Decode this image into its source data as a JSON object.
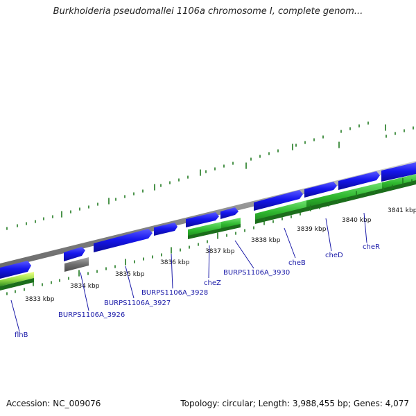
{
  "title": "Burkholderia pseudomallei 1106a chromosome I, complete genom...",
  "colors": {
    "forward_gene": "#1616ee",
    "pseudo_gene": "#7a7a7a",
    "cds_green": "#2fb82f",
    "tick_green": "#1f7a1f",
    "backbone": "#8a8a8a",
    "label_blue": "#1a1aa8"
  },
  "positions": [
    "3833 kbp",
    "3834 kbp",
    "3835 kbp",
    "3836 kbp",
    "3837 kbp",
    "3838 kbp",
    "3839 kbp",
    "3840 kbp",
    "3841 kbp"
  ],
  "genes": [
    "flhB",
    "BURPS1106A_3926",
    "BURPS1106A_3927",
    "BURPS1106A_3928",
    "cheZ",
    "BURPS1106A_3930",
    "cheB",
    "cheD",
    "cheR"
  ],
  "footer": {
    "accession": "Accession: NC_009076",
    "topology": "Topology: circular; Length: 3,988,455 bp; Genes: 4,077"
  }
}
